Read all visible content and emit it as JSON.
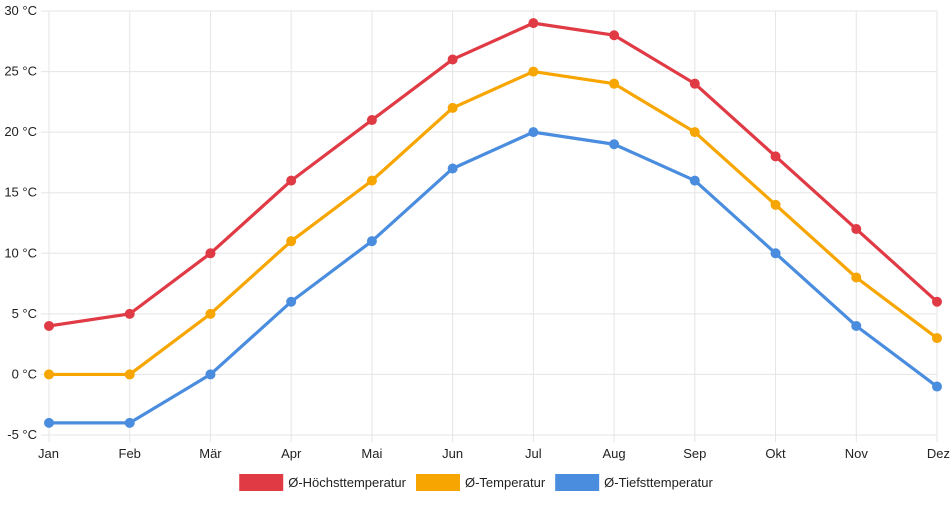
{
  "chart_data": {
    "type": "line",
    "title": "",
    "xlabel": "",
    "ylabel": "",
    "categories": [
      "Jan",
      "Feb",
      "Mär",
      "Apr",
      "Mai",
      "Jun",
      "Jul",
      "Aug",
      "Sep",
      "Okt",
      "Nov",
      "Dez"
    ],
    "ylim": [
      -5,
      30
    ],
    "yticks": [
      -5,
      0,
      5,
      10,
      15,
      20,
      25,
      30
    ],
    "ytick_unit": "°C",
    "grid": true,
    "legend_position": "bottom-center",
    "series": [
      {
        "name": "Ø-Höchsttemperatur",
        "color": "#e03a45",
        "values": [
          4,
          5,
          10,
          16,
          21,
          26,
          29,
          28,
          24,
          18,
          12,
          6
        ]
      },
      {
        "name": "Ø-Temperatur",
        "color": "#f7a500",
        "values": [
          0,
          0,
          5,
          11,
          16,
          22,
          25,
          24,
          20,
          14,
          8,
          3
        ]
      },
      {
        "name": "Ø-Tiefsttemperatur",
        "color": "#4a8ddf",
        "values": [
          -4,
          -4,
          0,
          6,
          11,
          17,
          20,
          19,
          16,
          10,
          4,
          -1
        ]
      }
    ]
  }
}
